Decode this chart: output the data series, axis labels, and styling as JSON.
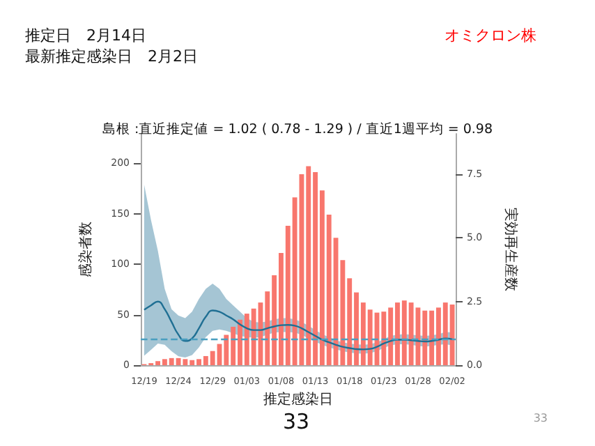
{
  "chart_data": {
    "type": "bar",
    "title": "島根 :直近推定値 = 1.02 ( 0.78 - 1.29 ) / 直近1週平均 = 0.98",
    "annotations": [
      "推定日　2月14日",
      "最新推定感染日　2月2日",
      "オミクロン株",
      "33",
      "33"
    ],
    "xlabel": "推定感染日",
    "ylabel": "感染者数",
    "y2label": "実効再生産数",
    "categories": [
      "12/19",
      null,
      null,
      null,
      null,
      "12/24",
      null,
      null,
      null,
      null,
      "12/29",
      null,
      null,
      null,
      null,
      "01/03",
      null,
      null,
      null,
      null,
      "01/08",
      null,
      null,
      null,
      null,
      "01/13",
      null,
      null,
      null,
      null,
      "01/18",
      null,
      null,
      null,
      null,
      "01/23",
      null,
      null,
      null,
      null,
      "01/28",
      null,
      null,
      null,
      null,
      "02/02"
    ],
    "series": [
      {
        "color": "#f8766d",
        "values": [
          1,
          2,
          4,
          6,
          7,
          7,
          6,
          5,
          6,
          9,
          14,
          21,
          30,
          38,
          45,
          51,
          56,
          62,
          73,
          89,
          111,
          138,
          166,
          189,
          197,
          191,
          173,
          149,
          126,
          104,
          86,
          72,
          62,
          55,
          52,
          53,
          57,
          62,
          64,
          62,
          57,
          54,
          54,
          57,
          62,
          60
        ]
      },
      {
        "type": "line",
        "axis": "y2",
        "color": "#1f6f93",
        "marker": "none",
        "line_style": "solid",
        "values": [
          2.18,
          2.35,
          2.5,
          2.2,
          1.7,
          1.2,
          0.95,
          1.05,
          1.45,
          1.9,
          2.15,
          2.1,
          1.95,
          1.8,
          1.6,
          1.45,
          1.38,
          1.38,
          1.45,
          1.52,
          1.57,
          1.58,
          1.55,
          1.45,
          1.3,
          1.15,
          1.0,
          0.9,
          0.8,
          0.72,
          0.67,
          0.63,
          0.62,
          0.64,
          0.72,
          0.85,
          0.95,
          1.0,
          1.0,
          0.98,
          0.95,
          0.93,
          0.95,
          1.0,
          1.05,
          1.02
        ],
        "lower": [
          0.37,
          0.6,
          0.85,
          0.8,
          0.55,
          0.35,
          0.3,
          0.4,
          0.7,
          1.1,
          1.35,
          1.4,
          1.35,
          1.25,
          1.15,
          1.1,
          1.08,
          1.1,
          1.2,
          1.28,
          1.3,
          1.3,
          1.28,
          1.2,
          1.05,
          0.92,
          0.8,
          0.7,
          0.62,
          0.55,
          0.5,
          0.46,
          0.45,
          0.47,
          0.55,
          0.68,
          0.78,
          0.82,
          0.82,
          0.8,
          0.75,
          0.73,
          0.75,
          0.8,
          0.82,
          0.78
        ],
        "upper": [
          7.09,
          5.7,
          4.5,
          3.0,
          2.2,
          1.95,
          1.85,
          2.1,
          2.6,
          3.0,
          3.2,
          3.0,
          2.6,
          2.35,
          2.1,
          1.85,
          1.7,
          1.68,
          1.72,
          1.8,
          1.85,
          1.85,
          1.8,
          1.7,
          1.55,
          1.38,
          1.22,
          1.1,
          0.98,
          0.9,
          0.85,
          0.82,
          0.8,
          0.82,
          0.9,
          1.02,
          1.15,
          1.2,
          1.22,
          1.2,
          1.17,
          1.15,
          1.17,
          1.22,
          1.3,
          1.29
        ]
      }
    ],
    "ylim": [
      0,
      229
    ],
    "yticks": [
      0,
      50,
      100,
      150,
      200
    ],
    "y2lim": [
      0,
      9.09
    ],
    "y2ticks": [
      {
        "value": 0,
        "label": "0.0"
      },
      {
        "value": 2.5,
        "label": "2.5"
      },
      {
        "value": 5,
        "label": "5.0"
      },
      {
        "value": 7.5,
        "label": "7.5"
      }
    ],
    "ref_lines": [
      {
        "axis": "y2",
        "value": 1.0,
        "color": "#4a9fc0",
        "line_style": "dashed"
      }
    ],
    "grid": false
  }
}
